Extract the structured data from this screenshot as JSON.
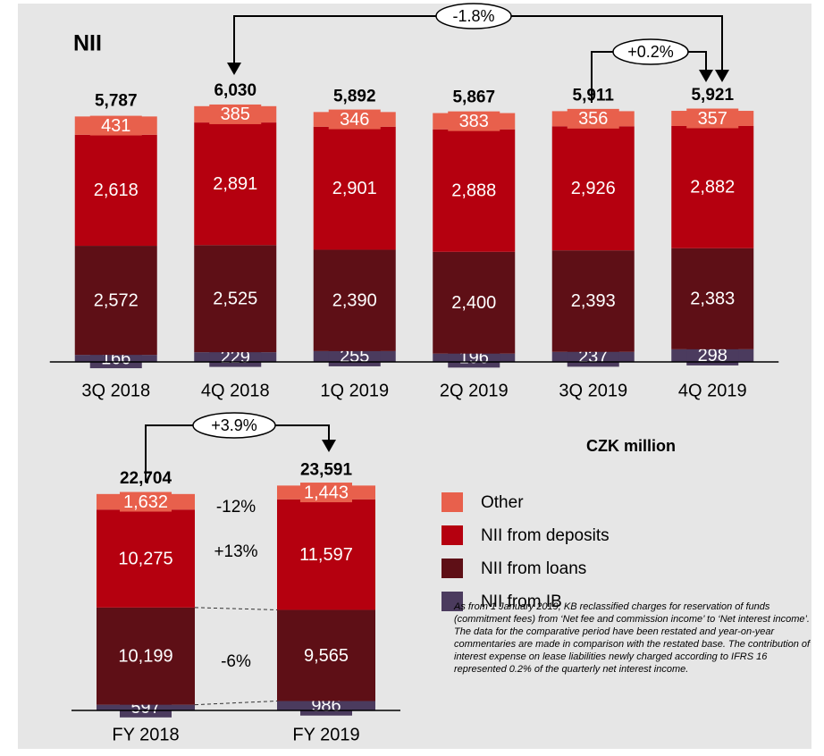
{
  "chart_data": [
    {
      "type": "stacked_bar",
      "title": "NII",
      "categories": [
        "3Q 2018",
        "4Q 2018",
        "1Q 2019",
        "2Q 2019",
        "3Q 2019",
        "4Q 2019"
      ],
      "series": [
        {
          "color": "#4b3b5e",
          "values": [
            166,
            229,
            255,
            196,
            237,
            298
          ],
          "value_labels": [
            "166",
            "229",
            "255",
            "196",
            "237",
            "298"
          ]
        },
        {
          "color": "#5e0f16",
          "values": [
            2572,
            2525,
            2390,
            2400,
            2393,
            2383
          ],
          "value_labels": [
            "2,572",
            "2,525",
            "2,390",
            "2,400",
            "2,393",
            "2,383"
          ]
        },
        {
          "color": "#b5000f",
          "values": [
            2618,
            2891,
            2901,
            2888,
            2926,
            2882
          ],
          "value_labels": [
            "2,618",
            "2,891",
            "2,901",
            "2,888",
            "2,926",
            "2,882"
          ]
        },
        {
          "color": "#e8604c",
          "values": [
            431,
            385,
            346,
            383,
            356,
            357
          ],
          "value_labels": [
            "431",
            "385",
            "346",
            "383",
            "356",
            "357"
          ]
        }
      ],
      "totals": [
        5787,
        6030,
        5892,
        5867,
        5911,
        5921
      ],
      "total_labels": [
        "5,787",
        "6,030",
        "5,892",
        "5,867",
        "5,911",
        "5,921"
      ],
      "annotations": [
        "-1.8%",
        "+0.2%"
      ],
      "ylim": [
        0,
        6300
      ]
    },
    {
      "type": "stacked_bar",
      "unit_label": "CZK million",
      "categories": [
        "FY 2018",
        "FY 2019"
      ],
      "series": [
        {
          "name": "NII from IB",
          "color": "#4b3b5e",
          "values": [
            597,
            986
          ],
          "value_labels": [
            "597",
            "986"
          ]
        },
        {
          "name": "NII from loans",
          "color": "#5e0f16",
          "values": [
            10199,
            9565
          ],
          "value_labels": [
            "10,199",
            "9,565"
          ]
        },
        {
          "name": "NII from deposits",
          "color": "#b5000f",
          "values": [
            10275,
            11597
          ],
          "value_labels": [
            "10,275",
            "11,597"
          ]
        },
        {
          "name": "Other",
          "color": "#e8604c",
          "values": [
            1632,
            1443
          ],
          "value_labels": [
            "1,632",
            "1,443"
          ]
        }
      ],
      "totals": [
        22704,
        23591
      ],
      "total_labels": [
        "22,704",
        "23,591"
      ],
      "annotations": [
        "+3.9%",
        "-12%",
        "+13%",
        "-6%"
      ],
      "footnote": "As from 1 January 2019, KB reclassified charges for reservation of funds (commitment fees) from ‘Net fee and commission income’ to ‘Net interest income’. The data for the comparative period have been restated and year-on-year commentaries are made in comparison with the restated base. The contribution of interest expense on lease liabilities newly charged according to IFRS 16 represented 0.2% of the quarterly net interest income.",
      "ylim": [
        0,
        24000
      ]
    }
  ]
}
